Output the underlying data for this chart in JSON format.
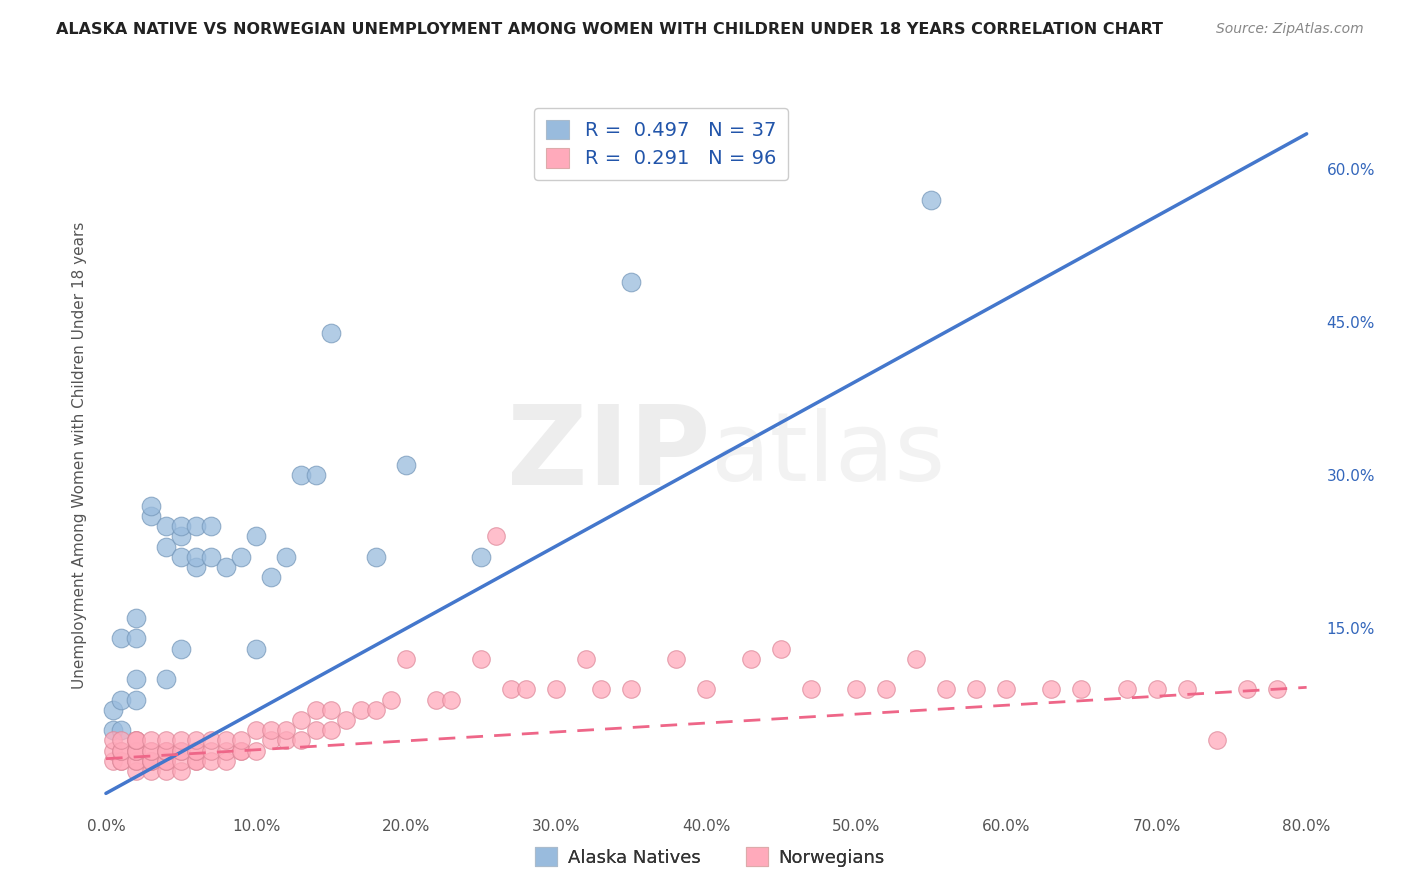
{
  "title": "ALASKA NATIVE VS NORWEGIAN UNEMPLOYMENT AMONG WOMEN WITH CHILDREN UNDER 18 YEARS CORRELATION CHART",
  "source": "Source: ZipAtlas.com",
  "ylabel": "Unemployment Among Women with Children Under 18 years",
  "xlim": [
    -0.005,
    0.81
  ],
  "ylim": [
    -0.03,
    0.67
  ],
  "xticks": [
    0.0,
    0.1,
    0.2,
    0.3,
    0.4,
    0.5,
    0.6,
    0.7,
    0.8
  ],
  "xticklabels": [
    "0.0%",
    "10.0%",
    "20.0%",
    "30.0%",
    "40.0%",
    "50.0%",
    "60.0%",
    "70.0%",
    "80.0%"
  ],
  "yticks_right": [
    0.15,
    0.3,
    0.45,
    0.6
  ],
  "yticklabels_right": [
    "15.0%",
    "30.0%",
    "45.0%",
    "60.0%"
  ],
  "alaska_color": "#99BBDD",
  "alaska_edge": "#7799BB",
  "norwegian_color": "#FFAABB",
  "norwegian_edge": "#DD8899",
  "alaska_R": 0.497,
  "alaska_N": 37,
  "norwegian_R": 0.291,
  "norwegian_N": 96,
  "alaska_line_color": "#4477CC",
  "norwegian_line_color": "#EE6688",
  "watermark_color": "#DDDDDD",
  "legend_label_alaska": "Alaska Natives",
  "legend_label_norwegian": "Norwegians",
  "alaska_points_x": [
    0.005,
    0.005,
    0.01,
    0.01,
    0.01,
    0.02,
    0.02,
    0.02,
    0.02,
    0.03,
    0.03,
    0.04,
    0.04,
    0.04,
    0.05,
    0.05,
    0.05,
    0.05,
    0.06,
    0.06,
    0.06,
    0.07,
    0.07,
    0.08,
    0.09,
    0.1,
    0.1,
    0.11,
    0.12,
    0.13,
    0.14,
    0.15,
    0.18,
    0.2,
    0.25,
    0.35,
    0.55
  ],
  "alaska_points_y": [
    0.05,
    0.07,
    0.05,
    0.08,
    0.14,
    0.08,
    0.14,
    0.16,
    0.1,
    0.26,
    0.27,
    0.25,
    0.23,
    0.1,
    0.22,
    0.24,
    0.25,
    0.13,
    0.21,
    0.22,
    0.25,
    0.22,
    0.25,
    0.21,
    0.22,
    0.24,
    0.13,
    0.2,
    0.22,
    0.3,
    0.3,
    0.44,
    0.22,
    0.31,
    0.22,
    0.49,
    0.57
  ],
  "norwegian_points_x": [
    0.005,
    0.005,
    0.005,
    0.01,
    0.01,
    0.01,
    0.01,
    0.01,
    0.02,
    0.02,
    0.02,
    0.02,
    0.02,
    0.02,
    0.02,
    0.02,
    0.02,
    0.03,
    0.03,
    0.03,
    0.03,
    0.03,
    0.03,
    0.03,
    0.04,
    0.04,
    0.04,
    0.04,
    0.04,
    0.04,
    0.04,
    0.05,
    0.05,
    0.05,
    0.05,
    0.05,
    0.06,
    0.06,
    0.06,
    0.06,
    0.06,
    0.07,
    0.07,
    0.07,
    0.08,
    0.08,
    0.08,
    0.09,
    0.09,
    0.09,
    0.1,
    0.1,
    0.11,
    0.11,
    0.12,
    0.12,
    0.13,
    0.13,
    0.14,
    0.14,
    0.15,
    0.15,
    0.16,
    0.17,
    0.18,
    0.19,
    0.2,
    0.22,
    0.23,
    0.25,
    0.26,
    0.27,
    0.28,
    0.3,
    0.32,
    0.33,
    0.35,
    0.38,
    0.4,
    0.43,
    0.45,
    0.47,
    0.5,
    0.52,
    0.54,
    0.56,
    0.58,
    0.6,
    0.63,
    0.65,
    0.68,
    0.7,
    0.72,
    0.74,
    0.76,
    0.78
  ],
  "norwegian_points_y": [
    0.02,
    0.03,
    0.04,
    0.02,
    0.02,
    0.03,
    0.03,
    0.04,
    0.01,
    0.02,
    0.02,
    0.03,
    0.03,
    0.03,
    0.04,
    0.04,
    0.04,
    0.01,
    0.02,
    0.02,
    0.02,
    0.03,
    0.03,
    0.04,
    0.01,
    0.02,
    0.02,
    0.03,
    0.03,
    0.03,
    0.04,
    0.01,
    0.02,
    0.03,
    0.03,
    0.04,
    0.02,
    0.02,
    0.03,
    0.03,
    0.04,
    0.02,
    0.03,
    0.04,
    0.02,
    0.03,
    0.04,
    0.03,
    0.03,
    0.04,
    0.03,
    0.05,
    0.04,
    0.05,
    0.04,
    0.05,
    0.04,
    0.06,
    0.05,
    0.07,
    0.05,
    0.07,
    0.06,
    0.07,
    0.07,
    0.08,
    0.12,
    0.08,
    0.08,
    0.12,
    0.24,
    0.09,
    0.09,
    0.09,
    0.12,
    0.09,
    0.09,
    0.12,
    0.09,
    0.12,
    0.13,
    0.09,
    0.09,
    0.09,
    0.12,
    0.09,
    0.09,
    0.09,
    0.09,
    0.09,
    0.09,
    0.09,
    0.09,
    0.04,
    0.09,
    0.09
  ],
  "alaska_line_x": [
    0.0,
    0.8
  ],
  "alaska_line_y": [
    -0.012,
    0.635
  ],
  "norwegian_line_x": [
    0.0,
    0.8
  ],
  "norwegian_line_y": [
    0.022,
    0.092
  ],
  "grid_color": "#CCCCCC",
  "bg_color": "#FFFFFF",
  "title_color": "#222222",
  "axis_label_color": "#555555"
}
